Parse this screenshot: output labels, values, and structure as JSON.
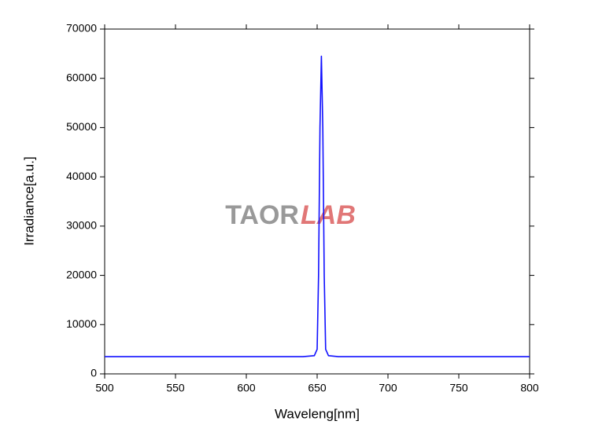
{
  "chart_data": {
    "type": "line",
    "xlabel": "Waveleng[nm]",
    "ylabel": "Irradiance[a.u.]",
    "watermark": {
      "left": "TAOR",
      "right": "LAB"
    },
    "x": [
      500,
      640,
      648,
      650,
      651,
      652,
      653,
      654,
      655,
      656,
      658,
      665,
      800
    ],
    "series": [
      {
        "name": "Irradiance",
        "color": "#1010ff",
        "values": [
          3500,
          3500,
          3700,
          5000,
          20000,
          50000,
          64500,
          50000,
          20000,
          5000,
          3700,
          3500,
          3500
        ]
      }
    ],
    "xlim": [
      500,
      800
    ],
    "xticks": [
      500,
      550,
      600,
      650,
      700,
      750,
      800
    ],
    "ylim": [
      0,
      70000
    ],
    "yticks": [
      0,
      10000,
      20000,
      30000,
      40000,
      50000,
      60000,
      70000
    ],
    "grid": false
  }
}
